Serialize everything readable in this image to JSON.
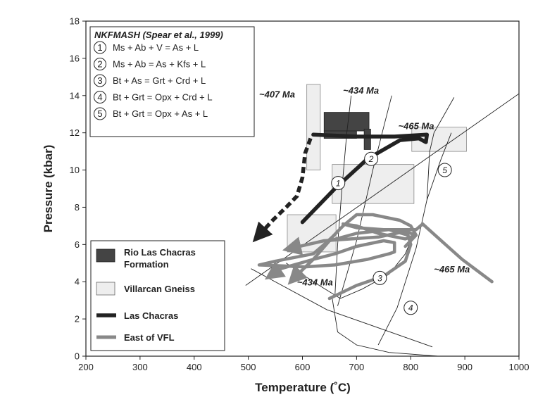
{
  "chart_data": {
    "type": "line",
    "xlabel": "Temperature (˚C)",
    "ylabel": "Pressure (kbar)",
    "xlim": [
      200,
      1000
    ],
    "ylim": [
      0,
      18
    ],
    "x_ticks": [
      200,
      300,
      400,
      500,
      600,
      700,
      800,
      900,
      1000
    ],
    "y_ticks": [
      0,
      2,
      4,
      6,
      8,
      10,
      12,
      14,
      16,
      18
    ],
    "reaction_box": {
      "title": "NKFMASH (Spear et al., 1999)",
      "reactions": [
        {
          "num": "1",
          "text": "Ms + Ab + V = As + L"
        },
        {
          "num": "2",
          "text": "Ms + Ab = As + Kfs + L"
        },
        {
          "num": "3",
          "text": "Bt + As = Grt + Crd + L"
        },
        {
          "num": "4",
          "text": "Bt + Grt = Opx + Crd + L"
        },
        {
          "num": "5",
          "text": "Bt + Grt = Opx + As + L"
        }
      ]
    },
    "reaction_curves": [
      {
        "num": "1",
        "points": [
          [
            660,
            3.2
          ],
          [
            665,
            6
          ],
          [
            673,
            9
          ],
          [
            682,
            12
          ],
          [
            690,
            14
          ]
        ],
        "label_at": [
          666,
          9.3
        ]
      },
      {
        "num": "2",
        "points": [
          [
            665,
            2.7
          ],
          [
            700,
            6.2
          ],
          [
            730,
            10
          ],
          [
            750,
            12.3
          ],
          [
            765,
            14
          ]
        ],
        "label_at": [
          727,
          10.6
        ]
      },
      {
        "num": "3",
        "points": [
          [
            570,
            5
          ],
          [
            620,
            4
          ],
          [
            670,
            3.1
          ],
          [
            710,
            3.6
          ],
          [
            760,
            4.4
          ],
          [
            790,
            5.5
          ],
          [
            800,
            6.2
          ]
        ],
        "label_at": [
          743,
          4.2
        ]
      },
      {
        "num": "4",
        "points": [
          [
            740,
            0.6
          ],
          [
            775,
            2.6
          ],
          [
            810,
            5.8
          ],
          [
            830,
            8.4
          ],
          [
            835,
            11
          ],
          [
            843,
            12
          ],
          [
            880,
            13.9
          ]
        ],
        "label_at": [
          800,
          2.6
        ]
      },
      {
        "num": "5",
        "points": [
          [
            830,
            8.4
          ],
          [
            855,
            10.5
          ],
          [
            875,
            12
          ]
        ],
        "label_at": [
          863,
          10
        ]
      }
    ],
    "straight_lines": [
      {
        "points": [
          [
            495,
            3.8
          ],
          [
            1000,
            14.1
          ]
        ]
      },
      {
        "points": [
          [
            505,
            4.7
          ],
          [
            645,
            2.5
          ],
          [
            840,
            0.5
          ]
        ]
      },
      {
        "points": [
          [
            655,
            3.1
          ],
          [
            665,
            1.3
          ],
          [
            700,
            0.6
          ],
          [
            760,
            0.2
          ],
          [
            850,
            0
          ]
        ]
      }
    ],
    "regions": [
      {
        "name": "Rio Las Chacras Formation",
        "color": "#444444",
        "rects": [
          [
            640,
            12.1,
            723,
            13.1
          ],
          [
            640,
            11.7,
            700,
            12.1
          ],
          [
            714,
            11.1,
            726,
            12.2
          ]
        ]
      },
      {
        "name": "Villarcan Gneiss",
        "color": "#eeeeee",
        "rects": [
          [
            608,
            10,
            633,
            14.6
          ],
          [
            572,
            5.6,
            662,
            7.6
          ],
          [
            655,
            8.2,
            806,
            10.3
          ],
          [
            802,
            11,
            903,
            12.3
          ]
        ]
      }
    ],
    "ages": [
      {
        "text": "~407 Ma",
        "at": [
          520,
          13.9
        ]
      },
      {
        "text": "~434 Ma",
        "at": [
          675,
          14.1
        ]
      },
      {
        "text": "~465 Ma",
        "at": [
          777,
          12.2
        ]
      },
      {
        "text": "~434 Ma",
        "at": [
          590,
          3.8
        ]
      },
      {
        "text": "~465 Ma",
        "at": [
          843,
          4.5
        ]
      }
    ],
    "series": [
      {
        "name": "Las Chacras",
        "color": "#222222",
        "style": "solid",
        "points": [
          [
            600,
            7.2
          ],
          [
            660,
            9
          ],
          [
            720,
            10.6
          ],
          [
            780,
            11.6
          ],
          [
            815,
            11.7
          ],
          [
            828,
            11.5
          ],
          [
            830,
            11.9
          ],
          [
            770,
            11.8
          ],
          [
            700,
            11.8
          ],
          [
            620,
            11.9
          ]
        ]
      },
      {
        "name": "Las Chacras (dashed)",
        "color": "#222222",
        "style": "dashed",
        "points": [
          [
            615,
            11.7
          ],
          [
            605,
            10.9
          ],
          [
            600,
            9.6
          ],
          [
            590,
            8.6
          ],
          [
            570,
            8.0
          ],
          [
            545,
            7.3
          ],
          [
            520,
            6.5
          ]
        ]
      },
      {
        "name": "East of VFL",
        "color": "#888888",
        "style": "solid",
        "points": [
          [
            950,
            4.0
          ],
          [
            895,
            5.2
          ],
          [
            845,
            6.5
          ],
          [
            822,
            7.1
          ],
          [
            810,
            6.8
          ],
          [
            750,
            6.8
          ],
          [
            700,
            6.9
          ],
          [
            675,
            7.1
          ],
          [
            700,
            7.0
          ],
          [
            740,
            6.6
          ],
          [
            790,
            6.3
          ],
          [
            810,
            6.5
          ],
          [
            790,
            6.7
          ],
          [
            740,
            6.4
          ],
          [
            690,
            6.3
          ],
          [
            640,
            6.2
          ],
          [
            610,
            6.0
          ],
          [
            580,
            5.8
          ]
        ]
      },
      {
        "name": "East of VFL (loop 2)",
        "color": "#888888",
        "style": "solid",
        "points": [
          [
            790,
            5.9
          ],
          [
            810,
            6.5
          ],
          [
            800,
            7.0
          ],
          [
            780,
            7.3
          ],
          [
            730,
            7.6
          ],
          [
            700,
            7.6
          ],
          [
            675,
            7.0
          ],
          [
            655,
            6.4
          ],
          [
            640,
            6.0
          ],
          [
            620,
            5.5
          ],
          [
            550,
            5.1
          ],
          [
            520,
            4.9
          ],
          [
            605,
            4.8
          ],
          [
            660,
            4.9
          ],
          [
            720,
            5.2
          ],
          [
            760,
            5.5
          ],
          [
            770,
            5.6
          ],
          [
            770,
            6.1
          ],
          [
            750,
            6.2
          ],
          [
            700,
            5.9
          ],
          [
            660,
            5.5
          ],
          [
            620,
            5.2
          ],
          [
            560,
            4.7
          ],
          [
            545,
            4.4
          ]
        ]
      },
      {
        "name": "East of VFL (loop 3)",
        "color": "#888888",
        "style": "solid",
        "points": [
          [
            650,
            3.1
          ],
          [
            700,
            3.8
          ],
          [
            750,
            4.3
          ],
          [
            790,
            5.1
          ],
          [
            800,
            6.0
          ],
          [
            795,
            6.5
          ],
          [
            760,
            6.8
          ],
          [
            700,
            6.6
          ],
          [
            650,
            6.2
          ],
          [
            620,
            5.2
          ],
          [
            595,
            4.5
          ],
          [
            585,
            4.2
          ]
        ]
      }
    ],
    "legend": {
      "placement": "bottom-left",
      "entries": [
        {
          "label": "Rio Las Chacras Formation",
          "kind": "swatch",
          "color": "#444444"
        },
        {
          "label": "Villarcan Gneiss",
          "kind": "swatch",
          "color": "#eeeeee"
        },
        {
          "label": "Las Chacras",
          "kind": "line",
          "color": "#222222"
        },
        {
          "label": "East of VFL",
          "kind": "line",
          "color": "#888888"
        }
      ]
    }
  }
}
